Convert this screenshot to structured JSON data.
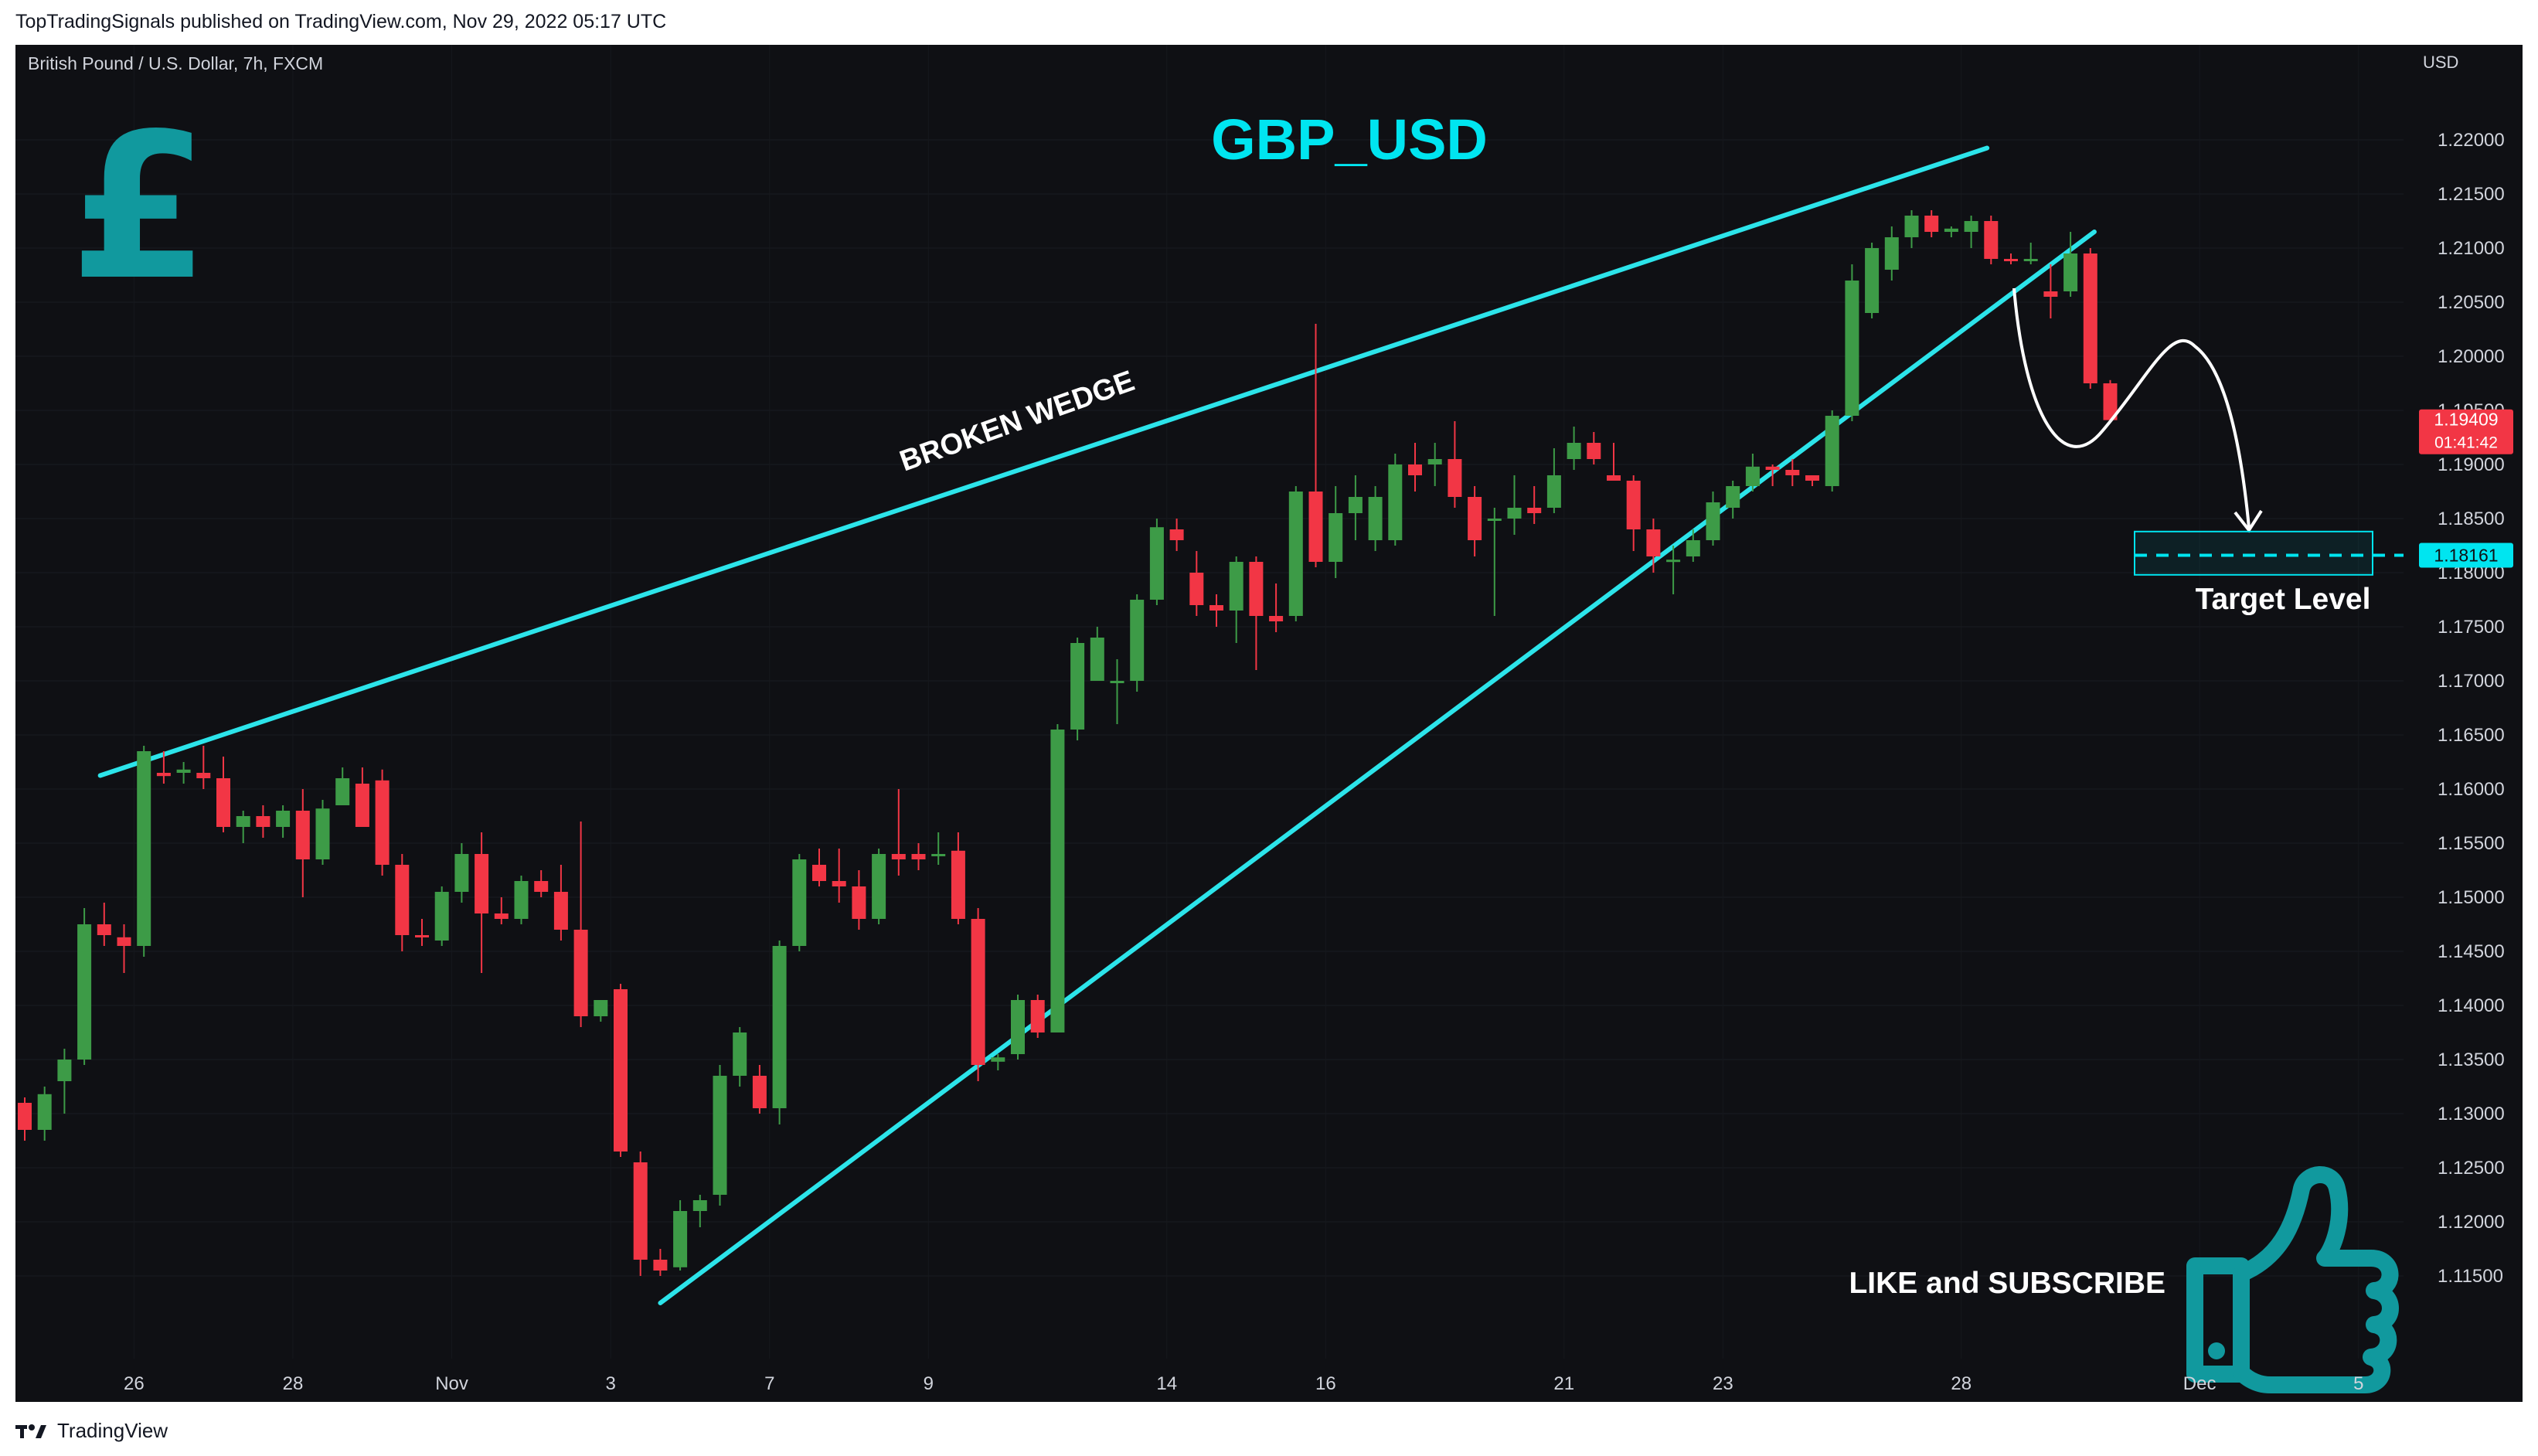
{
  "header": {
    "publisher_line": "TopTradingSignals published on TradingView.com, Nov 29, 2022 05:17 UTC"
  },
  "footer": {
    "brand": "TradingView"
  },
  "chart_data": {
    "type": "candlestick",
    "symbol_line": "British Pound / U.S. Dollar, 7h, FXCM",
    "title": "GBP_USD",
    "currency_label": "USD",
    "ylim": [
      1.1115,
      1.2235
    ],
    "y_ticks": [
      "1.22000",
      "1.21500",
      "1.21000",
      "1.20500",
      "1.20000",
      "1.19500",
      "1.19000",
      "1.18500",
      "1.18000",
      "1.17500",
      "1.17000",
      "1.16500",
      "1.16000",
      "1.15500",
      "1.15000",
      "1.14500",
      "1.14000",
      "1.13500",
      "1.13000",
      "1.12500",
      "1.12000",
      "1.11500"
    ],
    "x_ticks": [
      {
        "label": "26",
        "bar": 5.5
      },
      {
        "label": "28",
        "bar": 13.5
      },
      {
        "label": "Nov",
        "bar": 21.5
      },
      {
        "label": "3",
        "bar": 29.5
      },
      {
        "label": "7",
        "bar": 37.5
      },
      {
        "label": "9",
        "bar": 45.5
      },
      {
        "label": "14",
        "bar": 57.5
      },
      {
        "label": "16",
        "bar": 65.5
      },
      {
        "label": "21",
        "bar": 77.5
      },
      {
        "label": "23",
        "bar": 85.5
      },
      {
        "label": "28",
        "bar": 97.5
      },
      {
        "label": "Dec",
        "bar": 109.5
      },
      {
        "label": "5",
        "bar": 117.5
      }
    ],
    "candles": [
      [
        1.131,
        1.1315,
        1.1275,
        1.1285
      ],
      [
        1.1285,
        1.1325,
        1.1275,
        1.1318
      ],
      [
        1.133,
        1.136,
        1.13,
        1.135
      ],
      [
        1.135,
        1.149,
        1.1345,
        1.1475
      ],
      [
        1.1475,
        1.1495,
        1.1455,
        1.1465
      ],
      [
        1.1463,
        1.1475,
        1.143,
        1.1455
      ],
      [
        1.1455,
        1.164,
        1.1445,
        1.1635
      ],
      [
        1.1615,
        1.1635,
        1.1605,
        1.1612
      ],
      [
        1.1615,
        1.1625,
        1.1605,
        1.1618
      ],
      [
        1.1615,
        1.164,
        1.16,
        1.161
      ],
      [
        1.161,
        1.163,
        1.156,
        1.1565
      ],
      [
        1.1565,
        1.158,
        1.155,
        1.1575
      ],
      [
        1.1575,
        1.1585,
        1.1555,
        1.1565
      ],
      [
        1.1565,
        1.1585,
        1.1555,
        1.158
      ],
      [
        1.158,
        1.16,
        1.15,
        1.1535
      ],
      [
        1.1535,
        1.159,
        1.153,
        1.1582
      ],
      [
        1.1585,
        1.162,
        1.1585,
        1.161
      ],
      [
        1.1605,
        1.162,
        1.1565,
        1.1565
      ],
      [
        1.1608,
        1.1618,
        1.152,
        1.153
      ],
      [
        1.153,
        1.154,
        1.145,
        1.1465
      ],
      [
        1.1465,
        1.148,
        1.1455,
        1.1463
      ],
      [
        1.146,
        1.151,
        1.1455,
        1.1505
      ],
      [
        1.1505,
        1.155,
        1.1495,
        1.154
      ],
      [
        1.154,
        1.156,
        1.143,
        1.1485
      ],
      [
        1.1485,
        1.15,
        1.1475,
        1.148
      ],
      [
        1.148,
        1.152,
        1.1475,
        1.1515
      ],
      [
        1.1515,
        1.1525,
        1.15,
        1.1505
      ],
      [
        1.1505,
        1.153,
        1.146,
        1.147
      ],
      [
        1.147,
        1.157,
        1.138,
        1.139
      ],
      [
        1.139,
        1.1405,
        1.1385,
        1.1405
      ],
      [
        1.1415,
        1.142,
        1.126,
        1.1265
      ],
      [
        1.1255,
        1.1265,
        1.115,
        1.1165
      ],
      [
        1.1165,
        1.1175,
        1.115,
        1.1155
      ],
      [
        1.1158,
        1.122,
        1.1155,
        1.121
      ],
      [
        1.121,
        1.1225,
        1.1195,
        1.122
      ],
      [
        1.1225,
        1.1345,
        1.1215,
        1.1335
      ],
      [
        1.1335,
        1.138,
        1.1325,
        1.1375
      ],
      [
        1.1335,
        1.1345,
        1.13,
        1.1305
      ],
      [
        1.1305,
        1.146,
        1.129,
        1.1455
      ],
      [
        1.1455,
        1.154,
        1.145,
        1.1535
      ],
      [
        1.153,
        1.1545,
        1.151,
        1.1515
      ],
      [
        1.1515,
        1.1545,
        1.1495,
        1.151
      ],
      [
        1.151,
        1.1525,
        1.147,
        1.148
      ],
      [
        1.148,
        1.1545,
        1.1475,
        1.154
      ],
      [
        1.154,
        1.16,
        1.152,
        1.1535
      ],
      [
        1.154,
        1.155,
        1.1525,
        1.1535
      ],
      [
        1.154,
        1.156,
        1.153,
        1.154
      ],
      [
        1.1543,
        1.156,
        1.1475,
        1.148
      ],
      [
        1.148,
        1.149,
        1.133,
        1.1345
      ],
      [
        1.1348,
        1.1355,
        1.134,
        1.1352
      ],
      [
        1.1355,
        1.141,
        1.135,
        1.1405
      ],
      [
        1.1405,
        1.141,
        1.137,
        1.1375
      ],
      [
        1.1375,
        1.166,
        1.1375,
        1.1655
      ],
      [
        1.1655,
        1.174,
        1.1645,
        1.1735
      ],
      [
        1.17,
        1.175,
        1.17,
        1.174
      ],
      [
        1.17,
        1.172,
        1.166,
        1.17
      ],
      [
        1.17,
        1.178,
        1.169,
        1.1775
      ],
      [
        1.1775,
        1.185,
        1.177,
        1.1842
      ],
      [
        1.184,
        1.185,
        1.182,
        1.183
      ],
      [
        1.18,
        1.182,
        1.176,
        1.177
      ],
      [
        1.177,
        1.178,
        1.175,
        1.1765
      ],
      [
        1.1765,
        1.1815,
        1.1735,
        1.181
      ],
      [
        1.181,
        1.1815,
        1.171,
        1.176
      ],
      [
        1.176,
        1.179,
        1.1745,
        1.1755
      ],
      [
        1.176,
        1.188,
        1.1755,
        1.1875
      ],
      [
        1.1875,
        1.203,
        1.1805,
        1.181
      ],
      [
        1.181,
        1.188,
        1.1795,
        1.1855
      ],
      [
        1.1855,
        1.189,
        1.183,
        1.187
      ],
      [
        1.183,
        1.188,
        1.182,
        1.187
      ],
      [
        1.183,
        1.191,
        1.1825,
        1.19
      ],
      [
        1.19,
        1.192,
        1.1875,
        1.189
      ],
      [
        1.19,
        1.192,
        1.188,
        1.1905
      ],
      [
        1.1905,
        1.194,
        1.186,
        1.187
      ],
      [
        1.187,
        1.188,
        1.1815,
        1.183
      ],
      [
        1.185,
        1.186,
        1.176,
        1.185
      ],
      [
        1.185,
        1.189,
        1.1835,
        1.186
      ],
      [
        1.186,
        1.188,
        1.1845,
        1.1855
      ],
      [
        1.186,
        1.1915,
        1.1855,
        1.189
      ],
      [
        1.1905,
        1.1935,
        1.1895,
        1.192
      ],
      [
        1.192,
        1.193,
        1.19,
        1.1905
      ],
      [
        1.189,
        1.192,
        1.1885,
        1.1885
      ],
      [
        1.1885,
        1.189,
        1.182,
        1.184
      ],
      [
        1.184,
        1.185,
        1.18,
        1.1815
      ],
      [
        1.181,
        1.1825,
        1.178,
        1.1812
      ],
      [
        1.1815,
        1.184,
        1.181,
        1.183
      ],
      [
        1.183,
        1.1875,
        1.1825,
        1.1865
      ],
      [
        1.186,
        1.1885,
        1.185,
        1.188
      ],
      [
        1.188,
        1.191,
        1.1875,
        1.1898
      ],
      [
        1.1898,
        1.19,
        1.188,
        1.1895
      ],
      [
        1.1895,
        1.1905,
        1.188,
        1.189
      ],
      [
        1.189,
        1.188,
        1.188,
        1.1885
      ],
      [
        1.188,
        1.195,
        1.1875,
        1.1945
      ],
      [
        1.1945,
        1.2085,
        1.194,
        1.207
      ],
      [
        1.204,
        1.2105,
        1.2035,
        1.21
      ],
      [
        1.208,
        1.212,
        1.207,
        1.211
      ],
      [
        1.211,
        1.2135,
        1.21,
        1.213
      ],
      [
        1.213,
        1.2135,
        1.211,
        1.2115
      ],
      [
        1.2115,
        1.212,
        1.211,
        1.2118
      ],
      [
        1.2115,
        1.213,
        1.21,
        1.2125
      ],
      [
        1.2125,
        1.213,
        1.2085,
        1.209
      ],
      [
        1.209,
        1.2095,
        1.2085,
        1.2088
      ],
      [
        1.2088,
        1.2105,
        1.2085,
        1.209
      ],
      [
        1.206,
        1.2085,
        1.2035,
        1.2055
      ],
      [
        1.206,
        1.2115,
        1.2055,
        1.2095
      ],
      [
        1.2095,
        1.21,
        1.197,
        1.1975
      ],
      [
        1.1975,
        1.1978,
        1.1942,
        1.1941
      ]
    ],
    "trendlines": [
      {
        "name": "upper-wedge-line",
        "from": {
          "bar": 3.8,
          "price": 1.16125
        },
        "to": {
          "bar": 98.8,
          "price": 1.21925
        }
      },
      {
        "name": "lower-wedge-line",
        "from": {
          "bar": 32.0,
          "price": 1.1125
        },
        "to": {
          "bar": 104.2,
          "price": 1.2115
        }
      }
    ],
    "annotations": {
      "wedge_label": "BROKEN WEDGE",
      "target_label": "Target Level",
      "cta": "LIKE and SUBSCRIBE",
      "icons": [
        "pound-logo-icon",
        "thumbs-up-icon"
      ]
    },
    "target_level": 1.18161,
    "target_zone": [
      1.1798,
      1.1838
    ],
    "last_price": {
      "value": "1.19409",
      "countdown": "01:41:42"
    },
    "target_price_label": "1.18161",
    "colors": {
      "up": "#26a69a",
      "up_body": "#3d9b47",
      "down": "#f23645",
      "trendline": "#2ce4ea",
      "title": "#00e5f0",
      "brand": "#11999e",
      "price_tag": "#f23645",
      "target_tag": "#00e5f0"
    }
  }
}
